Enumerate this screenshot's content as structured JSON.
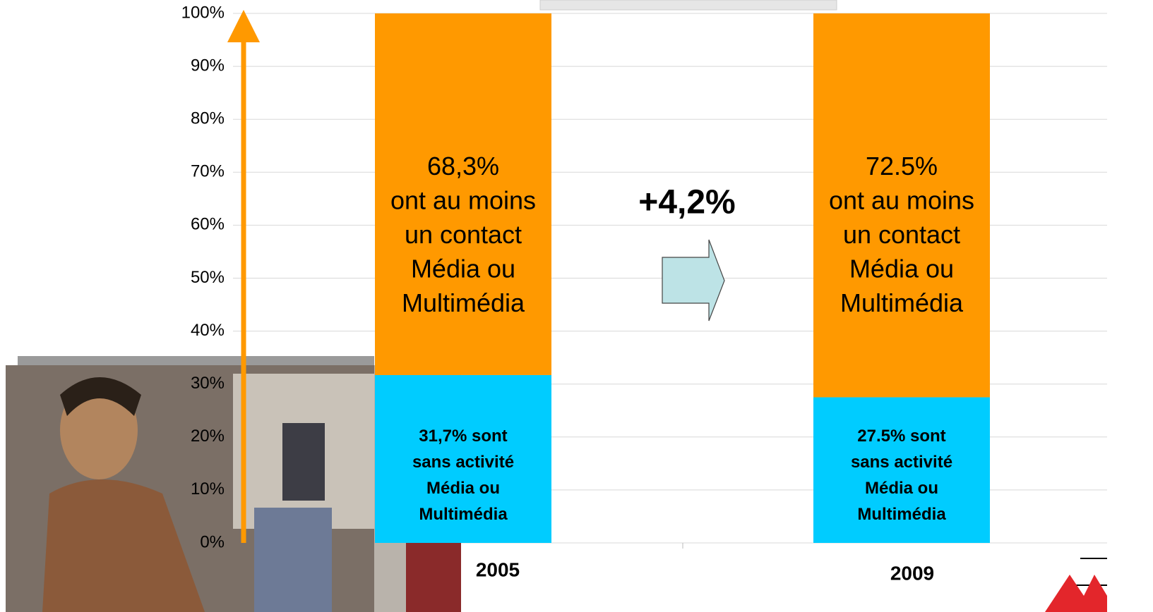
{
  "chart_data": {
    "type": "stacked-bar",
    "categories": [
      "2005",
      "2009"
    ],
    "series": [
      {
        "color": "#00CCFF",
        "values": [
          31.7,
          27.5
        ],
        "value_labels": [
          "31,7% sont\nsans activité\nMédia ou\nMultimédia",
          "27.5% sont\nsans activité\nMédia ou\nMultimédia"
        ]
      },
      {
        "color": "#FF9900",
        "values": [
          68.3,
          72.5
        ],
        "value_labels": [
          "68,3%\nont au moins\nun contact\nMédia ou\nMultimédia",
          "72.5%\nont au moins\nun contact\nMédia ou\nMultimédia"
        ]
      }
    ],
    "ylim": [
      0,
      100
    ],
    "yticks": [
      {
        "value": 0,
        "label": "0%"
      },
      {
        "value": 10,
        "label": "10%"
      },
      {
        "value": 20,
        "label": "20%"
      },
      {
        "value": 30,
        "label": "30%"
      },
      {
        "value": 40,
        "label": "40%"
      },
      {
        "value": 50,
        "label": "50%"
      },
      {
        "value": 60,
        "label": "60%"
      },
      {
        "value": 70,
        "label": "70%"
      },
      {
        "value": 80,
        "label": "80%"
      },
      {
        "value": 90,
        "label": "90%"
      },
      {
        "value": 100,
        "label": "100%"
      }
    ],
    "grid": true,
    "annotation": "+4,2%"
  }
}
